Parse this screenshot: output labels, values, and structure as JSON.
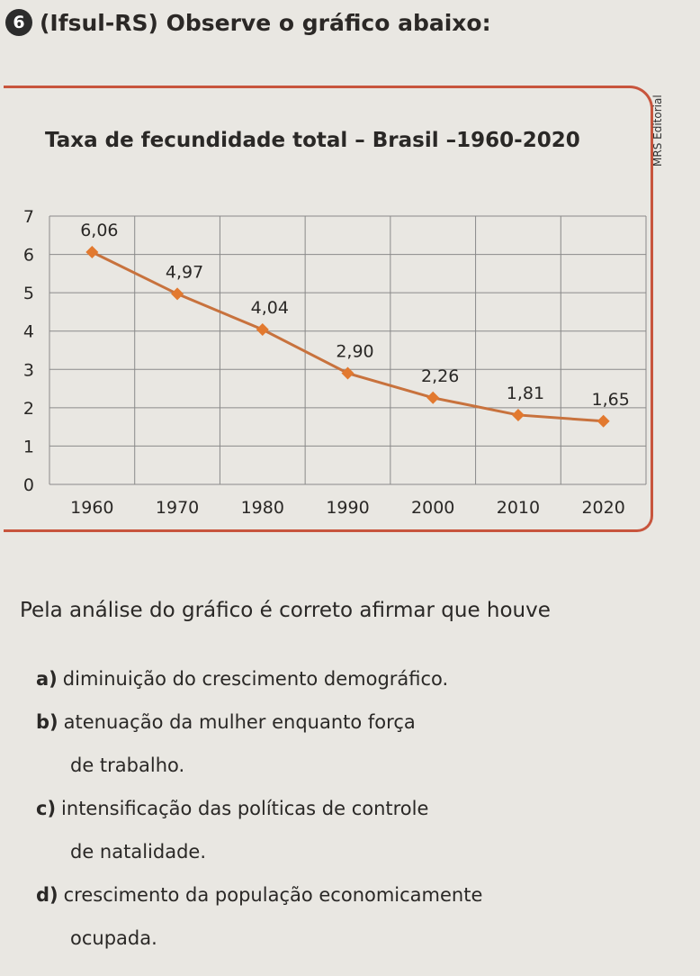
{
  "question": {
    "number": "6",
    "title": "(Ifsul-RS) Observe o gráfico abaixo:"
  },
  "figure": {
    "title": "Taxa de fecundidade total – Brasil –1960-2020",
    "credit": "MRS Editorial"
  },
  "chart_data": {
    "type": "line",
    "title": "Taxa de fecundidade total – Brasil –1960-2020",
    "xlabel": "",
    "ylabel": "",
    "x": [
      "1960",
      "1970",
      "1980",
      "1990",
      "2000",
      "2010",
      "2020"
    ],
    "series": [
      {
        "values": [
          6.06,
          4.97,
          4.04,
          2.9,
          2.26,
          1.81,
          1.65
        ]
      }
    ],
    "data_labels": [
      "6,06",
      "4,97",
      "4,04",
      "2,90",
      "2,26",
      "1,81",
      "1,65"
    ],
    "yticks": [
      "0",
      "1",
      "2",
      "3",
      "4",
      "5",
      "6",
      "7"
    ],
    "ylim": [
      0,
      7
    ],
    "grid": true,
    "line_color": "#c8723d",
    "marker_color": "#e2792f"
  },
  "prompt": "Pela análise do gráfico é correto afirmar que houve",
  "options": [
    {
      "letter": "a)",
      "text": "diminuição do crescimento demográfico.",
      "cont": ""
    },
    {
      "letter": "b)",
      "text": "atenuação da mulher enquanto força",
      "cont": "de trabalho."
    },
    {
      "letter": "c)",
      "text": "intensificação das políticas de controle",
      "cont": "de natalidade."
    },
    {
      "letter": "d)",
      "text": "crescimento da população economicamente",
      "cont": "ocupada."
    }
  ]
}
